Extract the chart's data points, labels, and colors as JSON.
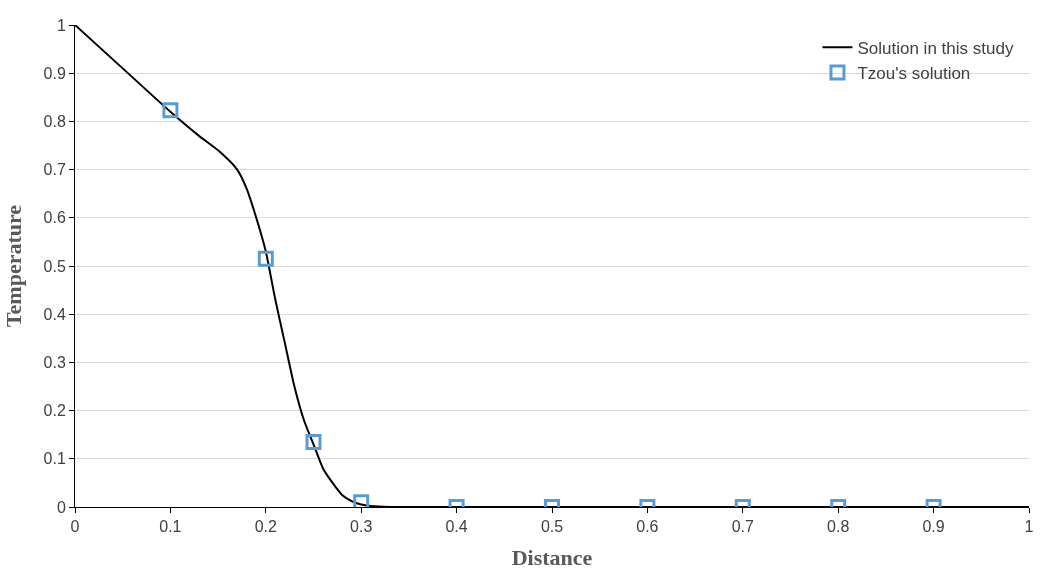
{
  "chart_data": {
    "type": "line",
    "xlabel": "Distance",
    "ylabel": "Temperature",
    "xlim": [
      0,
      1
    ],
    "ylim": [
      0,
      1
    ],
    "xticks": [
      0,
      0.1,
      0.2,
      0.3,
      0.4,
      0.5,
      0.6,
      0.7,
      0.8,
      0.9,
      1
    ],
    "yticks": [
      0,
      0.1,
      0.2,
      0.3,
      0.4,
      0.5,
      0.6,
      0.7,
      0.8,
      0.9,
      1
    ],
    "grid": "y",
    "legend": "top right",
    "series": [
      {
        "name": "Solution in this study",
        "color": "#000000",
        "line_style": "solid",
        "marker": "none",
        "x": [
          0,
          0.05,
          0.1,
          0.13,
          0.15,
          0.17,
          0.18,
          0.19,
          0.2,
          0.21,
          0.22,
          0.23,
          0.24,
          0.25,
          0.26,
          0.27,
          0.28,
          0.29,
          0.3,
          0.31,
          0.33,
          0.4,
          0.5,
          0.6,
          0.7,
          0.8,
          0.9,
          1
        ],
        "values": [
          1,
          0.91,
          0.82,
          0.77,
          0.74,
          0.7,
          0.66,
          0.6,
          0.53,
          0.43,
          0.34,
          0.25,
          0.18,
          0.13,
          0.08,
          0.05,
          0.025,
          0.012,
          0.005,
          0.002,
          0,
          0,
          0,
          0,
          0,
          0,
          0,
          0
        ]
      },
      {
        "name": "Tzou's solution",
        "type": "scatter",
        "color": "#5b9bd5",
        "marker": "square",
        "x": [
          0.1,
          0.2,
          0.25,
          0.3,
          0.4,
          0.5,
          0.6,
          0.7,
          0.8,
          0.9
        ],
        "values": [
          0.823,
          0.515,
          0.135,
          0.01,
          0,
          0,
          0,
          0,
          0,
          0
        ]
      }
    ]
  }
}
